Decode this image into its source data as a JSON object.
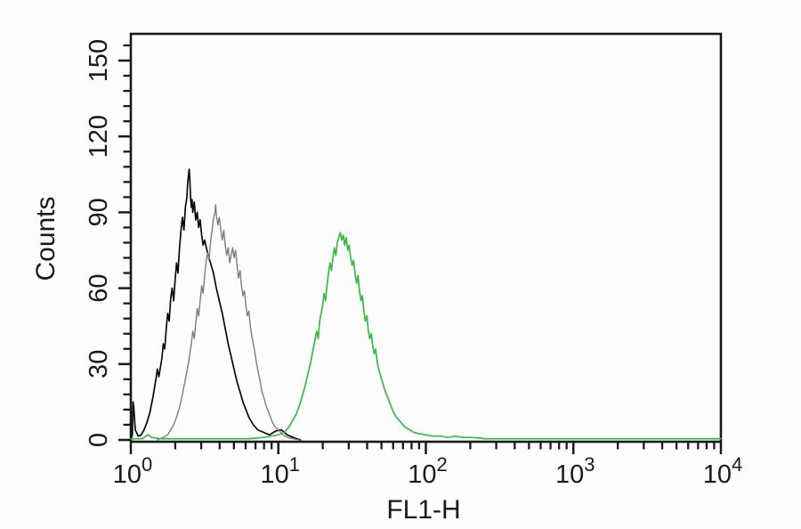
{
  "figure": {
    "background_color": "#fdfdfd",
    "frame_color": "#1a1a1a"
  },
  "chart_data": {
    "type": "line",
    "subtype": "flow-cytometry-histogram-overlay",
    "title": "",
    "xlabel": "FL1-H",
    "ylabel": "Counts",
    "x_scale": "log10",
    "xlim": [
      1,
      10000
    ],
    "ylim": [
      0,
      160
    ],
    "grid": false,
    "legend": "none",
    "x_ticks": [
      {
        "base": "10",
        "exp": "0",
        "log_value": 0
      },
      {
        "base": "10",
        "exp": "1",
        "log_value": 1
      },
      {
        "base": "10",
        "exp": "2",
        "log_value": 2
      },
      {
        "base": "10",
        "exp": "3",
        "log_value": 3
      },
      {
        "base": "10",
        "exp": "4",
        "log_value": 4
      }
    ],
    "x_minor_tick_mantissas": [
      2,
      3,
      4,
      5,
      6,
      7,
      8,
      9
    ],
    "y_major_ticks": [
      0,
      30,
      60,
      90,
      120,
      150
    ],
    "y_minor_step": 6,
    "series": [
      {
        "name": "black-histogram",
        "color": "#0a0a0a",
        "peak_log_x": 0.4,
        "peak_counts": 107,
        "points": [
          [
            0,
            0
          ],
          [
            0.01,
            2
          ],
          [
            0.015,
            15
          ],
          [
            0.02,
            13
          ],
          [
            0.03,
            4
          ],
          [
            0.05,
            1.5
          ],
          [
            0.07,
            2
          ],
          [
            0.09,
            4
          ],
          [
            0.11,
            7
          ],
          [
            0.13,
            11
          ],
          [
            0.15,
            17
          ],
          [
            0.17,
            24
          ],
          [
            0.18,
            28
          ],
          [
            0.19,
            25
          ],
          [
            0.21,
            32
          ],
          [
            0.22,
            38
          ],
          [
            0.23,
            36
          ],
          [
            0.24,
            44
          ],
          [
            0.25,
            50
          ],
          [
            0.26,
            47
          ],
          [
            0.27,
            56
          ],
          [
            0.28,
            60
          ],
          [
            0.29,
            55
          ],
          [
            0.3,
            63
          ],
          [
            0.31,
            70
          ],
          [
            0.32,
            66
          ],
          [
            0.33,
            76
          ],
          [
            0.34,
            83
          ],
          [
            0.35,
            88
          ],
          [
            0.36,
            83
          ],
          [
            0.37,
            92
          ],
          [
            0.38,
            96
          ],
          [
            0.385,
            101
          ],
          [
            0.39,
            104
          ],
          [
            0.395,
            107
          ],
          [
            0.4,
            103
          ],
          [
            0.405,
            96
          ],
          [
            0.41,
            92
          ],
          [
            0.415,
            95
          ],
          [
            0.42,
            90
          ],
          [
            0.43,
            94
          ],
          [
            0.44,
            87
          ],
          [
            0.45,
            90
          ],
          [
            0.46,
            84
          ],
          [
            0.47,
            87
          ],
          [
            0.48,
            81
          ],
          [
            0.49,
            77
          ],
          [
            0.5,
            79
          ],
          [
            0.52,
            74
          ],
          [
            0.54,
            70
          ],
          [
            0.56,
            66
          ],
          [
            0.58,
            60
          ],
          [
            0.6,
            55
          ],
          [
            0.62,
            50
          ],
          [
            0.64,
            44
          ],
          [
            0.66,
            38
          ],
          [
            0.68,
            33
          ],
          [
            0.7,
            28
          ],
          [
            0.72,
            23
          ],
          [
            0.74,
            19
          ],
          [
            0.76,
            15
          ],
          [
            0.78,
            12
          ],
          [
            0.8,
            9
          ],
          [
            0.83,
            6
          ],
          [
            0.86,
            4
          ],
          [
            0.9,
            3
          ],
          [
            0.94,
            2
          ],
          [
            0.98,
            3.5
          ],
          [
            1.02,
            4
          ],
          [
            1.06,
            2
          ],
          [
            1.1,
            1
          ],
          [
            1.15,
            0
          ]
        ]
      },
      {
        "name": "gray-histogram",
        "color": "#7d7d7d",
        "peak_log_x": 0.58,
        "peak_counts": 93,
        "points": [
          [
            0.18,
            0
          ],
          [
            0.22,
            1
          ],
          [
            0.25,
            2
          ],
          [
            0.27,
            4
          ],
          [
            0.29,
            6
          ],
          [
            0.31,
            9
          ],
          [
            0.33,
            13
          ],
          [
            0.35,
            18
          ],
          [
            0.37,
            24
          ],
          [
            0.39,
            30
          ],
          [
            0.4,
            34
          ],
          [
            0.41,
            38
          ],
          [
            0.42,
            43
          ],
          [
            0.43,
            40
          ],
          [
            0.44,
            46
          ],
          [
            0.45,
            52
          ],
          [
            0.46,
            49
          ],
          [
            0.47,
            55
          ],
          [
            0.48,
            61
          ],
          [
            0.49,
            58
          ],
          [
            0.5,
            65
          ],
          [
            0.51,
            70
          ],
          [
            0.52,
            74
          ],
          [
            0.53,
            71
          ],
          [
            0.54,
            78
          ],
          [
            0.55,
            83
          ],
          [
            0.56,
            87
          ],
          [
            0.57,
            90
          ],
          [
            0.575,
            93
          ],
          [
            0.58,
            89
          ],
          [
            0.59,
            85
          ],
          [
            0.6,
            88
          ],
          [
            0.61,
            83
          ],
          [
            0.62,
            79
          ],
          [
            0.63,
            83
          ],
          [
            0.64,
            77
          ],
          [
            0.65,
            73
          ],
          [
            0.66,
            76
          ],
          [
            0.67,
            70
          ],
          [
            0.68,
            73
          ],
          [
            0.69,
            76
          ],
          [
            0.7,
            72
          ],
          [
            0.71,
            75
          ],
          [
            0.72,
            69
          ],
          [
            0.73,
            64
          ],
          [
            0.74,
            67
          ],
          [
            0.75,
            61
          ],
          [
            0.76,
            57
          ],
          [
            0.77,
            59
          ],
          [
            0.78,
            53
          ],
          [
            0.79,
            49
          ],
          [
            0.8,
            51
          ],
          [
            0.81,
            45
          ],
          [
            0.82,
            41
          ],
          [
            0.83,
            38
          ],
          [
            0.84,
            35
          ],
          [
            0.85,
            31
          ],
          [
            0.86,
            28
          ],
          [
            0.87,
            25
          ],
          [
            0.88,
            22
          ],
          [
            0.89,
            19
          ],
          [
            0.9,
            17
          ],
          [
            0.92,
            13
          ],
          [
            0.94,
            10
          ],
          [
            0.96,
            7
          ],
          [
            0.98,
            5
          ],
          [
            1.0,
            4
          ],
          [
            1.03,
            2
          ],
          [
            1.06,
            1
          ],
          [
            1.1,
            0.5
          ],
          [
            1.14,
            0
          ]
        ]
      },
      {
        "name": "green-histogram",
        "color": "#3cba46",
        "peak_log_x": 1.42,
        "peak_counts": 82,
        "points": [
          [
            0,
            0.5
          ],
          [
            0.08,
            0.5
          ],
          [
            0.1,
            1.5
          ],
          [
            0.12,
            2
          ],
          [
            0.14,
            1
          ],
          [
            0.2,
            0.5
          ],
          [
            0.5,
            0.5
          ],
          [
            0.8,
            0.5
          ],
          [
            0.9,
            1
          ],
          [
            0.95,
            1.5
          ],
          [
            1.0,
            2
          ],
          [
            1.04,
            3
          ],
          [
            1.07,
            5
          ],
          [
            1.1,
            8
          ],
          [
            1.12,
            10
          ],
          [
            1.14,
            13
          ],
          [
            1.16,
            17
          ],
          [
            1.18,
            21
          ],
          [
            1.2,
            26
          ],
          [
            1.22,
            31
          ],
          [
            1.24,
            37
          ],
          [
            1.26,
            43
          ],
          [
            1.27,
            40
          ],
          [
            1.28,
            47
          ],
          [
            1.3,
            53
          ],
          [
            1.31,
            58
          ],
          [
            1.32,
            55
          ],
          [
            1.33,
            61
          ],
          [
            1.34,
            66
          ],
          [
            1.35,
            70
          ],
          [
            1.36,
            67
          ],
          [
            1.37,
            72
          ],
          [
            1.38,
            76
          ],
          [
            1.39,
            73
          ],
          [
            1.4,
            78
          ],
          [
            1.41,
            80
          ],
          [
            1.42,
            82
          ],
          [
            1.43,
            79
          ],
          [
            1.44,
            81
          ],
          [
            1.45,
            77
          ],
          [
            1.46,
            80
          ],
          [
            1.47,
            75
          ],
          [
            1.48,
            77
          ],
          [
            1.49,
            72
          ],
          [
            1.5,
            69
          ],
          [
            1.51,
            71
          ],
          [
            1.52,
            66
          ],
          [
            1.53,
            62
          ],
          [
            1.54,
            65
          ],
          [
            1.55,
            59
          ],
          [
            1.56,
            55
          ],
          [
            1.57,
            57
          ],
          [
            1.58,
            51
          ],
          [
            1.59,
            47
          ],
          [
            1.6,
            49
          ],
          [
            1.61,
            43
          ],
          [
            1.62,
            40
          ],
          [
            1.63,
            42
          ],
          [
            1.64,
            37
          ],
          [
            1.65,
            34
          ],
          [
            1.66,
            36
          ],
          [
            1.67,
            31
          ],
          [
            1.68,
            28
          ],
          [
            1.7,
            24
          ],
          [
            1.72,
            20
          ],
          [
            1.74,
            17
          ],
          [
            1.76,
            14
          ],
          [
            1.78,
            11
          ],
          [
            1.8,
            9
          ],
          [
            1.83,
            7
          ],
          [
            1.86,
            5
          ],
          [
            1.89,
            4
          ],
          [
            1.92,
            3
          ],
          [
            1.95,
            2.5
          ],
          [
            2.0,
            2
          ],
          [
            2.05,
            1.5
          ],
          [
            2.1,
            1.5
          ],
          [
            2.15,
            1
          ],
          [
            2.2,
            1.5
          ],
          [
            2.25,
            1
          ],
          [
            2.3,
            1
          ],
          [
            2.35,
            0.8
          ],
          [
            2.4,
            0.5
          ],
          [
            2.6,
            0.5
          ],
          [
            3.0,
            0.5
          ],
          [
            3.5,
            0.5
          ],
          [
            4.0,
            0.5
          ]
        ]
      }
    ]
  }
}
